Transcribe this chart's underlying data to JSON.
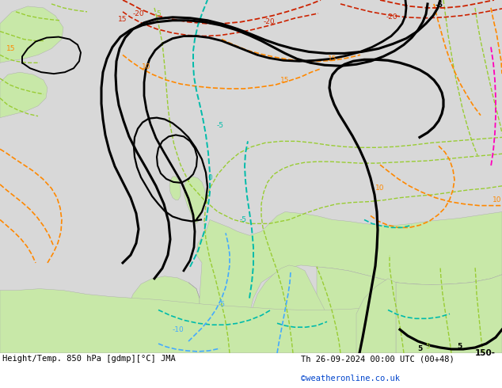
{
  "title_left": "Height/Temp. 850 hPa [gdmp][°C] JMA",
  "title_right": "Th 26-09-2024 00:00 UTC (00+48)",
  "credit": "©weatheronline.co.uk",
  "bg_color": "#ffffff",
  "map_bg_ocean": "#e8e8e8",
  "map_bg_land": "#c8e8b0",
  "fig_width": 6.34,
  "fig_height": 4.9,
  "dpi": 100
}
